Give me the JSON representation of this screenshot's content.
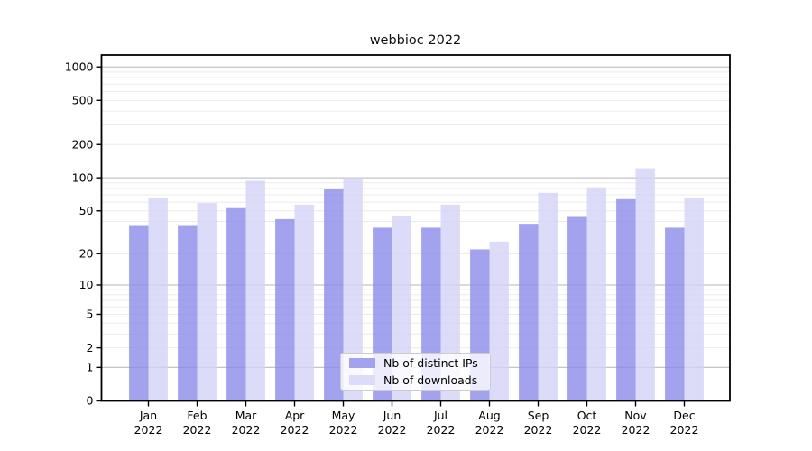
{
  "title": "webbioc 2022",
  "colors": {
    "distinct_ips_bar": "#a2a2ee",
    "downloads_bar": "#dcdcf8",
    "grid_decade": "#c4c4c4",
    "grid_minor": "#ebebeb",
    "axis_line": "#000000",
    "tick_text": "#000000",
    "legend_border": "#cccccc",
    "background": "#ffffff"
  },
  "legend": {
    "items": [
      {
        "id": "distinct-ips",
        "label": "Nb of distinct IPs",
        "color": "#a2a2ee"
      },
      {
        "id": "downloads",
        "label": "Nb of downloads",
        "color": "#dcdcf8"
      }
    ]
  },
  "x_axis": {
    "months": [
      "Jan",
      "Feb",
      "Mar",
      "Apr",
      "May",
      "Jun",
      "Jul",
      "Aug",
      "Sep",
      "Oct",
      "Nov",
      "Dec"
    ],
    "year": "2022"
  },
  "y_axis": {
    "ticks": [
      0,
      1,
      2,
      5,
      10,
      20,
      50,
      100,
      200,
      500,
      1000
    ],
    "scale": "log10(1+x)"
  },
  "chart_data": {
    "type": "bar",
    "title": "webbioc 2022",
    "categories": [
      "Jan 2022",
      "Feb 2022",
      "Mar 2022",
      "Apr 2022",
      "May 2022",
      "Jun 2022",
      "Jul 2022",
      "Aug 2022",
      "Sep 2022",
      "Oct 2022",
      "Nov 2022",
      "Dec 2022"
    ],
    "series": [
      {
        "name": "Nb of distinct IPs",
        "color": "#a2a2ee",
        "values": [
          37,
          37,
          53,
          42,
          80,
          35,
          35,
          22,
          38,
          44,
          64,
          35
        ]
      },
      {
        "name": "Nb of downloads",
        "color": "#dcdcf8",
        "values": [
          66,
          59,
          94,
          57,
          100,
          45,
          57,
          26,
          73,
          82,
          122,
          66
        ]
      }
    ],
    "y_ticks": [
      0,
      1,
      2,
      5,
      10,
      20,
      50,
      100,
      200,
      500,
      1000
    ],
    "ylim": [
      0,
      1280
    ],
    "y_scale": "log10(1+x)",
    "grid": true,
    "legend_position": "lower center",
    "xlabel": "",
    "ylabel": ""
  }
}
